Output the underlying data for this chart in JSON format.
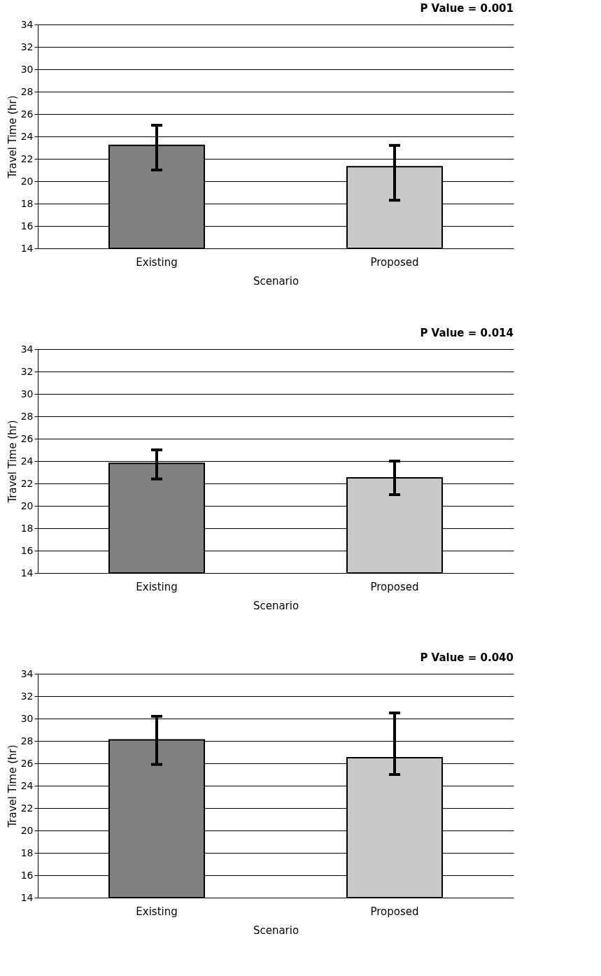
{
  "chart_data": [
    {
      "type": "bar",
      "title": "P Value = 0.001",
      "xlabel": "Scenario",
      "ylabel": "Travel Time (hr)",
      "categories": [
        "Existing",
        "Proposed"
      ],
      "values": [
        23.2,
        21.3
      ],
      "colors": [
        "#808080",
        "#c8c8c8"
      ],
      "errors": [
        [
          21.0,
          25.0
        ],
        [
          18.3,
          23.2
        ]
      ],
      "ylim": [
        14,
        34
      ],
      "yticks": [
        14,
        16,
        18,
        20,
        22,
        24,
        26,
        28,
        30,
        32,
        34
      ],
      "grid": "y"
    },
    {
      "type": "bar",
      "title": "P Value = 0.014",
      "xlabel": "Scenario",
      "ylabel": "Travel Time (hr)",
      "categories": [
        "Existing",
        "Proposed"
      ],
      "values": [
        23.8,
        22.5
      ],
      "colors": [
        "#808080",
        "#c8c8c8"
      ],
      "errors": [
        [
          22.4,
          25.0
        ],
        [
          21.0,
          24.0
        ]
      ],
      "ylim": [
        14,
        34
      ],
      "yticks": [
        14,
        16,
        18,
        20,
        22,
        24,
        26,
        28,
        30,
        32,
        34
      ],
      "grid": "y"
    },
    {
      "type": "bar",
      "title": "P Value = 0.040",
      "xlabel": "Scenario",
      "ylabel": "Travel Time (hr)",
      "categories": [
        "Existing",
        "Proposed"
      ],
      "values": [
        28.1,
        26.5
      ],
      "colors": [
        "#808080",
        "#c8c8c8"
      ],
      "errors": [
        [
          25.9,
          30.2
        ],
        [
          25.0,
          30.5
        ]
      ],
      "ylim": [
        14,
        34
      ],
      "yticks": [
        14,
        16,
        18,
        20,
        22,
        24,
        26,
        28,
        30,
        32,
        34
      ],
      "grid": "y"
    }
  ]
}
